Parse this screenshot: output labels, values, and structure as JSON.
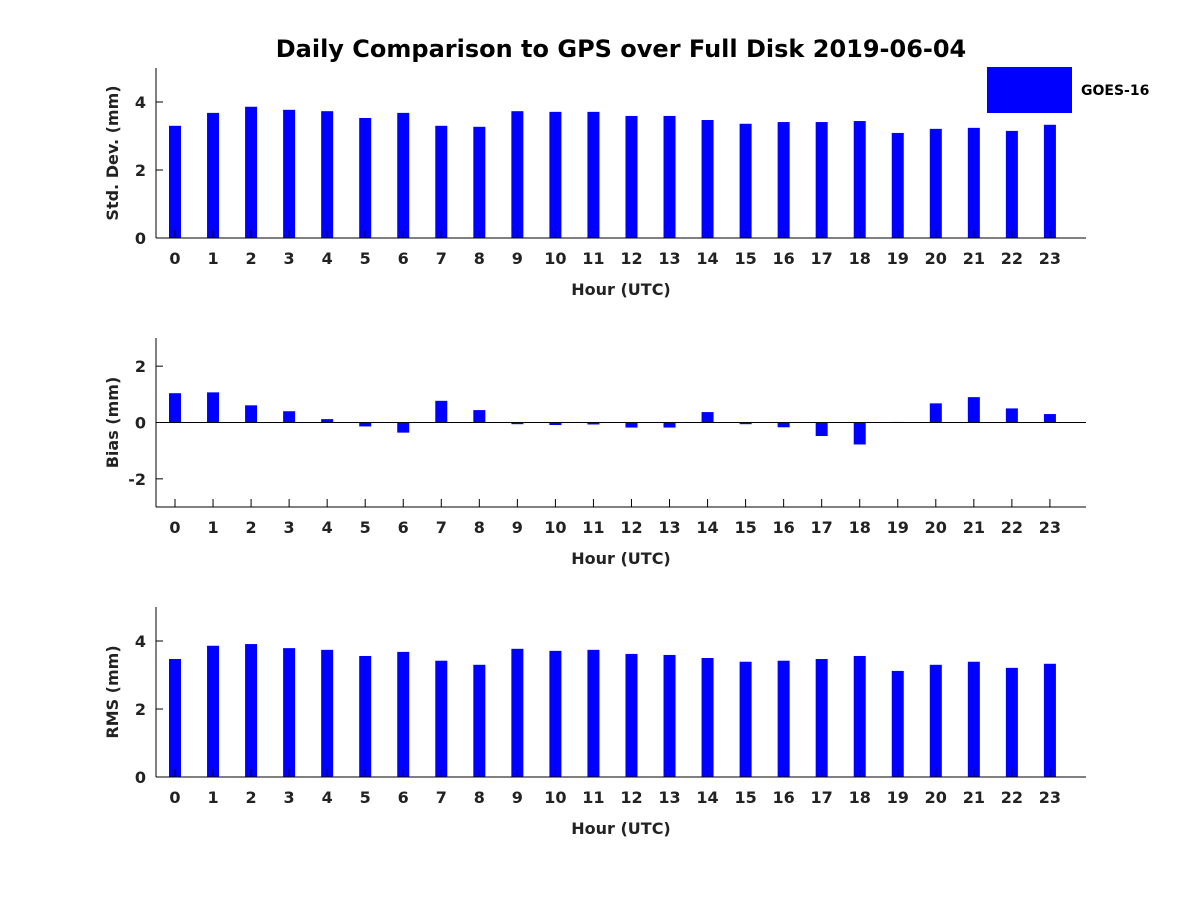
{
  "figure": {
    "title": "Daily Comparison to GPS over Full Disk 2019-06-04",
    "legend": {
      "label": "GOES-16",
      "color": "#0000ff",
      "placement": "top-right"
    }
  },
  "chart_data": [
    {
      "type": "bar",
      "xlabel": "Hour (UTC)",
      "ylabel": "Std. Dev. (mm)",
      "categories": [
        "0",
        "1",
        "2",
        "3",
        "4",
        "5",
        "6",
        "7",
        "8",
        "9",
        "10",
        "11",
        "12",
        "13",
        "14",
        "15",
        "16",
        "17",
        "18",
        "19",
        "20",
        "21",
        "22",
        "23"
      ],
      "series": [
        {
          "name": "GOES-16",
          "color": "#0000ff",
          "values": [
            3.3,
            3.68,
            3.86,
            3.77,
            3.73,
            3.53,
            3.68,
            3.3,
            3.27,
            3.73,
            3.71,
            3.71,
            3.59,
            3.59,
            3.47,
            3.36,
            3.41,
            3.41,
            3.44,
            3.09,
            3.21,
            3.24,
            3.15,
            3.33
          ]
        }
      ],
      "ylim": [
        0,
        5
      ],
      "yticks": [
        0,
        2,
        4
      ],
      "grid": false
    },
    {
      "type": "bar",
      "xlabel": "Hour (UTC)",
      "ylabel": "Bias (mm)",
      "categories": [
        "0",
        "1",
        "2",
        "3",
        "4",
        "5",
        "6",
        "7",
        "8",
        "9",
        "10",
        "11",
        "12",
        "13",
        "14",
        "15",
        "16",
        "17",
        "18",
        "19",
        "20",
        "21",
        "22",
        "23"
      ],
      "series": [
        {
          "name": "GOES-16",
          "color": "#0000ff",
          "values": [
            1.04,
            1.07,
            0.61,
            0.4,
            0.12,
            -0.14,
            -0.36,
            0.77,
            0.44,
            -0.06,
            -0.09,
            -0.07,
            -0.18,
            -0.18,
            0.37,
            -0.06,
            -0.17,
            -0.48,
            -0.78,
            0.02,
            0.68,
            0.9,
            0.5,
            0.3
          ]
        }
      ],
      "ylim": [
        -3,
        3
      ],
      "yticks": [
        -2,
        0,
        2
      ],
      "zero_line": true,
      "grid": false
    },
    {
      "type": "bar",
      "xlabel": "Hour (UTC)",
      "ylabel": "RMS (mm)",
      "categories": [
        "0",
        "1",
        "2",
        "3",
        "4",
        "5",
        "6",
        "7",
        "8",
        "9",
        "10",
        "11",
        "12",
        "13",
        "14",
        "15",
        "16",
        "17",
        "18",
        "19",
        "20",
        "21",
        "22",
        "23"
      ],
      "series": [
        {
          "name": "GOES-16",
          "color": "#0000ff",
          "values": [
            3.47,
            3.86,
            3.91,
            3.79,
            3.74,
            3.56,
            3.68,
            3.42,
            3.3,
            3.77,
            3.71,
            3.74,
            3.62,
            3.59,
            3.5,
            3.39,
            3.42,
            3.47,
            3.56,
            3.12,
            3.3,
            3.39,
            3.21,
            3.33
          ]
        }
      ],
      "ylim": [
        0,
        5
      ],
      "yticks": [
        0,
        2,
        4
      ],
      "grid": false
    }
  ]
}
